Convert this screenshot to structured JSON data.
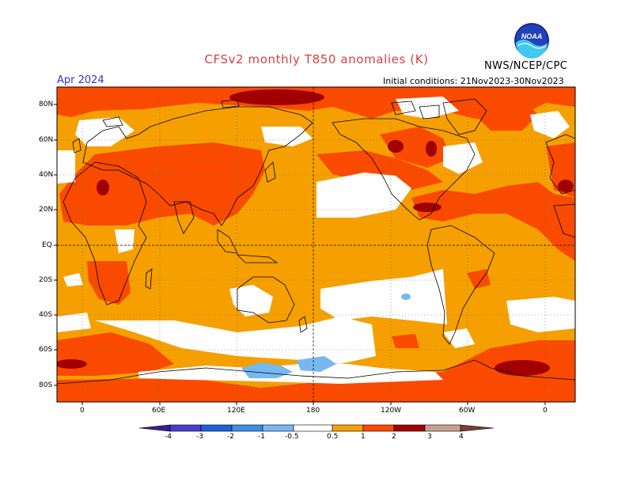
{
  "header": {
    "title": "CFSv2 monthly T850 anomalies (K)",
    "agency": "NWS/NCEP/CPC",
    "valid_month": "Apr 2024",
    "initial_conditions": "Initial conditions: 21Nov2023-30Nov2023"
  },
  "logo": {
    "text": "NOAA",
    "icon": "noaa-logo"
  },
  "map": {
    "projection": "cylindrical-equidistant",
    "lat_labels": [
      "80N",
      "60N",
      "40N",
      "20N",
      "EQ",
      "20S",
      "40S",
      "60S",
      "80S"
    ],
    "lon_labels": [
      "0",
      "60E",
      "120E",
      "180",
      "120W",
      "60W",
      "0"
    ],
    "reference_lines": [
      "equator dashed",
      "180 meridian dashed"
    ]
  },
  "colorbar": {
    "ticks": [
      "-4",
      "-3",
      "-2",
      "-1",
      "-0.5",
      "0.5",
      "1",
      "2",
      "3",
      "4"
    ],
    "colors": {
      "lt_-4": "#3a1f8f",
      "-4_-3": "#4a3cc8",
      "-3_-2": "#1f5fd8",
      "-2_-1": "#3a8fe8",
      "-1_-0.5": "#78b8f0",
      "-0.5_0.5": "#ffffff",
      "0.5_1": "#f5a000",
      "1_2": "#fa4a00",
      "2_3": "#a00000",
      "3_4": "#c8a090",
      "gt_4": "#7a4030"
    }
  }
}
